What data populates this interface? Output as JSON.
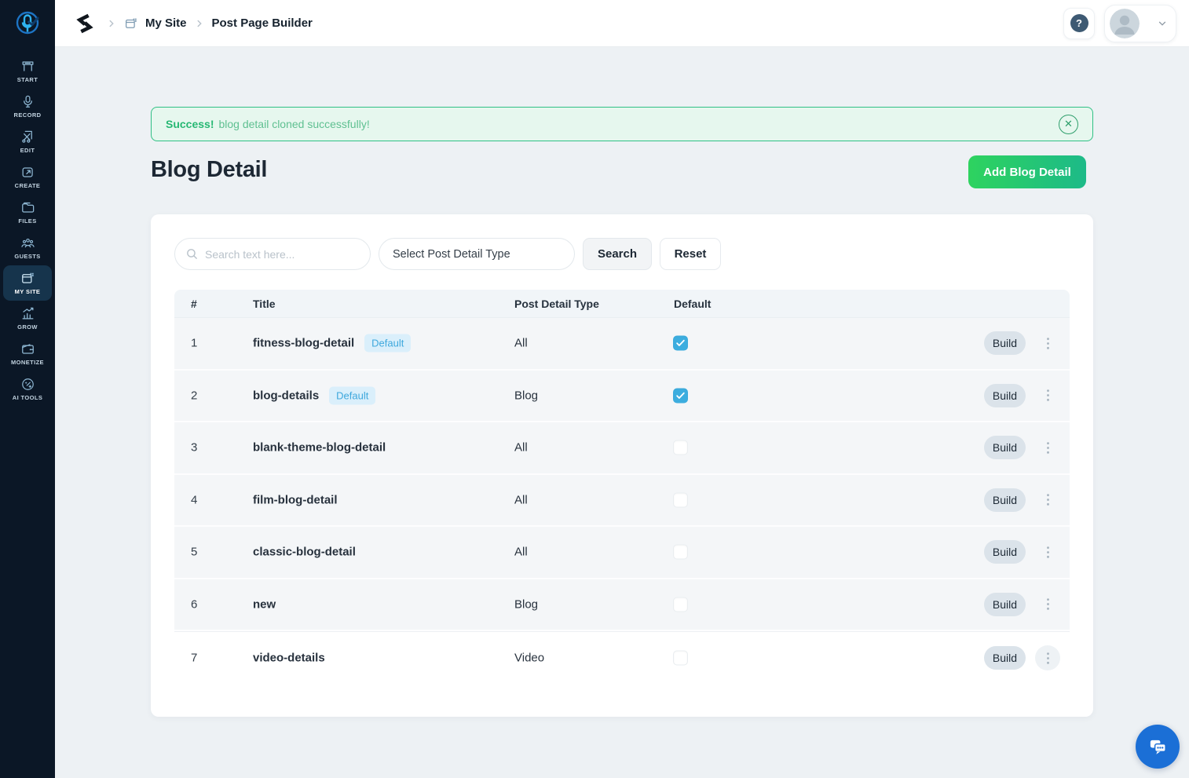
{
  "sidebar": {
    "items": [
      {
        "label": "START",
        "icon": "start-icon",
        "active": false
      },
      {
        "label": "RECORD",
        "icon": "record-icon",
        "active": false
      },
      {
        "label": "EDIT",
        "icon": "edit-icon",
        "active": false
      },
      {
        "label": "CREATE",
        "icon": "create-icon",
        "active": false
      },
      {
        "label": "FILES",
        "icon": "files-icon",
        "active": false
      },
      {
        "label": "GUESTS",
        "icon": "guests-icon",
        "active": false
      },
      {
        "label": "MY SITE",
        "icon": "my-site-icon",
        "active": true
      },
      {
        "label": "GROW",
        "icon": "grow-icon",
        "active": false
      },
      {
        "label": "MONETIZE",
        "icon": "monetize-icon",
        "active": false
      },
      {
        "label": "AI TOOLS",
        "icon": "ai-tools-icon",
        "active": false
      }
    ]
  },
  "header": {
    "breadcrumb": {
      "site": "My Site",
      "page": "Post Page Builder"
    },
    "help_label": "?"
  },
  "alert": {
    "title": "Success!",
    "message": "blog detail cloned successfully!",
    "close_glyph": "✕"
  },
  "page": {
    "title": "Blog Detail",
    "add_button_label": "Add Blog Detail"
  },
  "filters": {
    "search_placeholder": "Search text here...",
    "type_select_value": "Select Post Detail Type",
    "search_label": "Search",
    "reset_label": "Reset"
  },
  "table": {
    "columns": [
      "#",
      "Title",
      "Post Detail Type",
      "Default"
    ],
    "build_label": "Build",
    "rows": [
      {
        "num": "1",
        "title": "fitness-blog-detail",
        "badge": "Default",
        "type": "All",
        "default": true
      },
      {
        "num": "2",
        "title": "blog-details",
        "badge": "Default",
        "type": "Blog",
        "default": true
      },
      {
        "num": "3",
        "title": "blank-theme-blog-detail",
        "badge": null,
        "type": "All",
        "default": false
      },
      {
        "num": "4",
        "title": "film-blog-detail",
        "badge": null,
        "type": "All",
        "default": false
      },
      {
        "num": "5",
        "title": "classic-blog-detail",
        "badge": null,
        "type": "All",
        "default": false
      },
      {
        "num": "6",
        "title": "new",
        "badge": null,
        "type": "Blog",
        "default": false
      },
      {
        "num": "7",
        "title": "video-details",
        "badge": null,
        "type": "Video",
        "default": false
      }
    ]
  },
  "colors": {
    "sidebar_bg": "#0b1726",
    "sidebar_active": "#16344c",
    "success_green": "#26b873",
    "success_bg": "#e6f7ee",
    "add_button_gradient_start": "#2ed35f",
    "add_button_gradient_end": "#1dba88",
    "badge_blue": "#3ea8dd",
    "checkbox_blue": "#3caddf",
    "chat_fab_blue": "#1b6fd6"
  }
}
